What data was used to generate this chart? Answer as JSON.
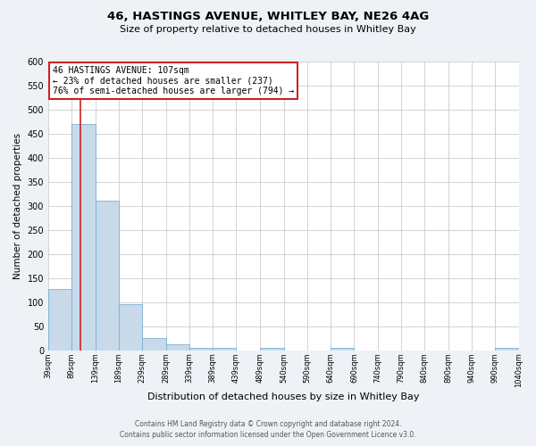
{
  "title": "46, HASTINGS AVENUE, WHITLEY BAY, NE26 4AG",
  "subtitle": "Size of property relative to detached houses in Whitley Bay",
  "xlabel": "Distribution of detached houses by size in Whitley Bay",
  "ylabel": "Number of detached properties",
  "bin_edges": [
    39,
    89,
    139,
    189,
    239,
    289,
    339,
    389,
    439,
    489,
    540,
    590,
    640,
    690,
    740,
    790,
    840,
    890,
    940,
    990,
    1040
  ],
  "bin_counts": [
    128,
    470,
    311,
    96,
    26,
    12,
    5,
    5,
    0,
    5,
    0,
    0,
    5,
    0,
    0,
    0,
    0,
    0,
    0,
    5
  ],
  "bar_color": "#c8daea",
  "bar_edge_color": "#7aaed0",
  "property_line_x": 107,
  "property_line_color": "#cc2222",
  "annotation_text": "46 HASTINGS AVENUE: 107sqm\n← 23% of detached houses are smaller (237)\n76% of semi-detached houses are larger (794) →",
  "annotation_box_edge_color": "#cc2222",
  "annotation_box_face_color": "#ffffff",
  "ylim": [
    0,
    600
  ],
  "yticks": [
    0,
    50,
    100,
    150,
    200,
    250,
    300,
    350,
    400,
    450,
    500,
    550,
    600
  ],
  "footer_line1": "Contains HM Land Registry data © Crown copyright and database right 2024.",
  "footer_line2": "Contains public sector information licensed under the Open Government Licence v3.0.",
  "background_color": "#eef2f7",
  "plot_background_color": "#ffffff",
  "grid_color": "#cccccc",
  "title_fontsize": 9.5,
  "subtitle_fontsize": 8,
  "xlabel_fontsize": 8,
  "ylabel_fontsize": 7.5,
  "ytick_fontsize": 7,
  "xtick_fontsize": 6,
  "footer_fontsize": 5.5,
  "annotation_fontsize": 7
}
